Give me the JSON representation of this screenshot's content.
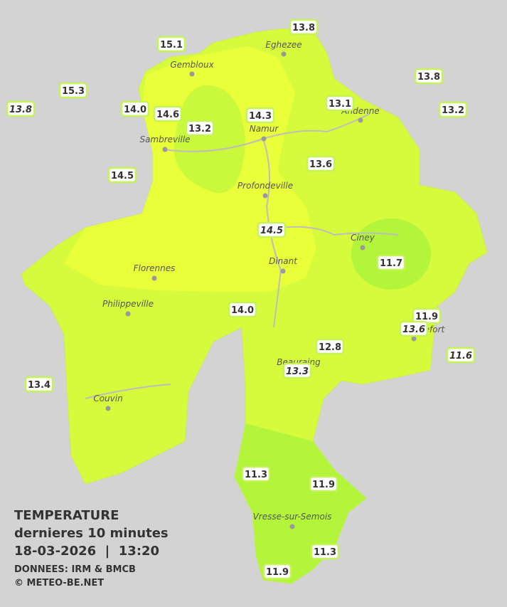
{
  "legend": {
    "title": "TEMPERATURE",
    "subtitle": "dernieres 10 minutes",
    "datetime": "18-03-2026  |  13:20",
    "source": "DONNEES: IRM & BMCB",
    "copyright": "© METEO-BE.NET"
  },
  "towns": [
    "Eghezee",
    "Gembloux",
    "Andenne",
    "Namur",
    "Sambreville",
    "Profondeville",
    "Ciney",
    "Florennes",
    "Dinant",
    "Philippeville",
    "Rochefort",
    "Beauraing",
    "Couvin",
    "Vresse-sur-Semois"
  ],
  "stations": [
    {
      "temp": "13.8"
    },
    {
      "temp": "15.1"
    },
    {
      "temp": "15.3"
    },
    {
      "temp": "13.8",
      "italic": true
    },
    {
      "temp": "14.0"
    },
    {
      "temp": "14.6"
    },
    {
      "temp": "13.2"
    },
    {
      "temp": "14.3"
    },
    {
      "temp": "13.1"
    },
    {
      "temp": "13.8"
    },
    {
      "temp": "13.2"
    },
    {
      "temp": "14.5"
    },
    {
      "temp": "13.6"
    },
    {
      "temp": "14.5",
      "italic": true
    },
    {
      "temp": "11.7"
    },
    {
      "temp": "14.0"
    },
    {
      "temp": "11.9"
    },
    {
      "temp": "13.6",
      "italic": true
    },
    {
      "temp": "12.8"
    },
    {
      "temp": "11.6",
      "italic": true
    },
    {
      "temp": "13.3",
      "italic": true
    },
    {
      "temp": "13.4"
    },
    {
      "temp": "11.3"
    },
    {
      "temp": "11.9"
    },
    {
      "temp": "11.3"
    },
    {
      "temp": "11.9"
    }
  ]
}
